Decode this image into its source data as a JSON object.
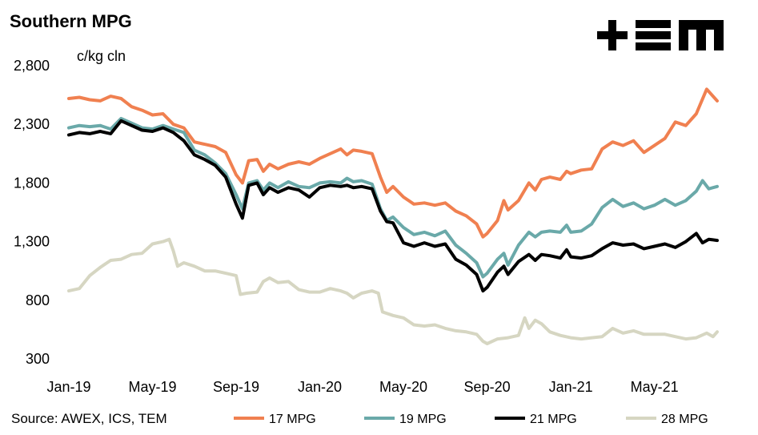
{
  "header": {
    "title": "Southern MPG",
    "unit": "c/kg cln"
  },
  "source": "Source: AWEX, ICS, TEM",
  "logo": {
    "icon": "tem-logo-icon",
    "text": "TEM"
  },
  "chart_data": {
    "type": "line",
    "title": "Southern MPG",
    "ylabel": "c/kg cln",
    "ylim": [
      300,
      2800
    ],
    "yticks": [
      "300",
      "800",
      "1,300",
      "1,800",
      "2,300",
      "2,800"
    ],
    "ytick_values": [
      300,
      800,
      1300,
      1800,
      2300,
      2800
    ],
    "xlim": [
      0,
      31
    ],
    "xticks": [
      "Jan-19",
      "May-19",
      "Sep-19",
      "Jan-20",
      "May-20",
      "Sep-20",
      "Jan-21",
      "May-21"
    ],
    "xtick_values": [
      0,
      4,
      8,
      12,
      16,
      20,
      24,
      28
    ],
    "legend_position": "bottom",
    "series": [
      {
        "name": "17 MPG",
        "color": "#f08050",
        "points": [
          [
            0,
            2520
          ],
          [
            0.5,
            2530
          ],
          [
            1,
            2510
          ],
          [
            1.5,
            2500
          ],
          [
            2,
            2540
          ],
          [
            2.5,
            2520
          ],
          [
            3,
            2450
          ],
          [
            3.5,
            2420
          ],
          [
            4,
            2380
          ],
          [
            4.5,
            2390
          ],
          [
            5,
            2300
          ],
          [
            5.5,
            2270
          ],
          [
            6,
            2150
          ],
          [
            6.5,
            2130
          ],
          [
            7,
            2110
          ],
          [
            7.5,
            2060
          ],
          [
            8,
            1870
          ],
          [
            8.3,
            1800
          ],
          [
            8.6,
            1990
          ],
          [
            9,
            2000
          ],
          [
            9.3,
            1900
          ],
          [
            9.6,
            1960
          ],
          [
            10,
            1920
          ],
          [
            10.5,
            1960
          ],
          [
            11,
            1980
          ],
          [
            11.5,
            1960
          ],
          [
            12,
            2010
          ],
          [
            12.5,
            2050
          ],
          [
            13,
            2090
          ],
          [
            13.3,
            2040
          ],
          [
            13.6,
            2080
          ],
          [
            14,
            2070
          ],
          [
            14.5,
            2050
          ],
          [
            14.9,
            1850
          ],
          [
            15.2,
            1720
          ],
          [
            15.5,
            1770
          ],
          [
            16,
            1680
          ],
          [
            16.5,
            1620
          ],
          [
            17,
            1630
          ],
          [
            17.5,
            1610
          ],
          [
            18,
            1630
          ],
          [
            18.5,
            1560
          ],
          [
            19,
            1520
          ],
          [
            19.5,
            1450
          ],
          [
            19.8,
            1340
          ],
          [
            20,
            1370
          ],
          [
            20.5,
            1480
          ],
          [
            20.8,
            1650
          ],
          [
            21,
            1570
          ],
          [
            21.5,
            1650
          ],
          [
            22,
            1800
          ],
          [
            22.3,
            1740
          ],
          [
            22.6,
            1830
          ],
          [
            23,
            1850
          ],
          [
            23.5,
            1830
          ],
          [
            23.8,
            1900
          ],
          [
            24,
            1880
          ],
          [
            24.5,
            1910
          ],
          [
            25,
            1920
          ],
          [
            25.5,
            2090
          ],
          [
            26,
            2150
          ],
          [
            26.5,
            2120
          ],
          [
            27,
            2160
          ],
          [
            27.5,
            2060
          ],
          [
            28,
            2120
          ],
          [
            28.5,
            2180
          ],
          [
            29,
            2320
          ],
          [
            29.5,
            2290
          ],
          [
            30,
            2390
          ],
          [
            30.5,
            2600
          ],
          [
            31,
            2500
          ]
        ]
      },
      {
        "name": "19 MPG",
        "color": "#6aa9a9",
        "points": [
          [
            0,
            2270
          ],
          [
            0.5,
            2290
          ],
          [
            1,
            2280
          ],
          [
            1.5,
            2290
          ],
          [
            2,
            2260
          ],
          [
            2.5,
            2350
          ],
          [
            3,
            2310
          ],
          [
            3.5,
            2270
          ],
          [
            4,
            2260
          ],
          [
            4.5,
            2290
          ],
          [
            5,
            2260
          ],
          [
            5.5,
            2230
          ],
          [
            6,
            2080
          ],
          [
            6.5,
            2040
          ],
          [
            7,
            1970
          ],
          [
            7.5,
            1880
          ],
          [
            8,
            1700
          ],
          [
            8.3,
            1580
          ],
          [
            8.6,
            1800
          ],
          [
            9,
            1820
          ],
          [
            9.3,
            1740
          ],
          [
            9.6,
            1800
          ],
          [
            10,
            1760
          ],
          [
            10.5,
            1810
          ],
          [
            11,
            1770
          ],
          [
            11.5,
            1760
          ],
          [
            12,
            1800
          ],
          [
            12.5,
            1810
          ],
          [
            13,
            1800
          ],
          [
            13.3,
            1840
          ],
          [
            13.6,
            1810
          ],
          [
            14,
            1820
          ],
          [
            14.5,
            1790
          ],
          [
            14.9,
            1580
          ],
          [
            15.2,
            1480
          ],
          [
            15.5,
            1510
          ],
          [
            16,
            1420
          ],
          [
            16.5,
            1360
          ],
          [
            17,
            1380
          ],
          [
            17.5,
            1350
          ],
          [
            18,
            1390
          ],
          [
            18.5,
            1270
          ],
          [
            19,
            1200
          ],
          [
            19.5,
            1120
          ],
          [
            19.8,
            1000
          ],
          [
            20,
            1030
          ],
          [
            20.5,
            1150
          ],
          [
            20.8,
            1200
          ],
          [
            21,
            1100
          ],
          [
            21.5,
            1270
          ],
          [
            22,
            1380
          ],
          [
            22.3,
            1340
          ],
          [
            22.6,
            1380
          ],
          [
            23,
            1390
          ],
          [
            23.5,
            1380
          ],
          [
            23.8,
            1440
          ],
          [
            24,
            1380
          ],
          [
            24.5,
            1390
          ],
          [
            25,
            1450
          ],
          [
            25.5,
            1590
          ],
          [
            26,
            1660
          ],
          [
            26.5,
            1600
          ],
          [
            27,
            1630
          ],
          [
            27.5,
            1580
          ],
          [
            28,
            1610
          ],
          [
            28.5,
            1660
          ],
          [
            29,
            1610
          ],
          [
            29.5,
            1650
          ],
          [
            30,
            1730
          ],
          [
            30.3,
            1820
          ],
          [
            30.6,
            1750
          ],
          [
            31,
            1770
          ]
        ]
      },
      {
        "name": "21 MPG",
        "color": "#000000",
        "points": [
          [
            0,
            2210
          ],
          [
            0.5,
            2230
          ],
          [
            1,
            2220
          ],
          [
            1.5,
            2240
          ],
          [
            2,
            2220
          ],
          [
            2.5,
            2330
          ],
          [
            3,
            2290
          ],
          [
            3.5,
            2250
          ],
          [
            4,
            2240
          ],
          [
            4.5,
            2270
          ],
          [
            5,
            2230
          ],
          [
            5.5,
            2160
          ],
          [
            6,
            2040
          ],
          [
            6.5,
            2000
          ],
          [
            7,
            1950
          ],
          [
            7.5,
            1850
          ],
          [
            8,
            1620
          ],
          [
            8.3,
            1500
          ],
          [
            8.6,
            1780
          ],
          [
            9,
            1800
          ],
          [
            9.3,
            1700
          ],
          [
            9.6,
            1760
          ],
          [
            10,
            1720
          ],
          [
            10.5,
            1760
          ],
          [
            11,
            1740
          ],
          [
            11.5,
            1680
          ],
          [
            12,
            1760
          ],
          [
            12.5,
            1780
          ],
          [
            13,
            1770
          ],
          [
            13.3,
            1780
          ],
          [
            13.6,
            1760
          ],
          [
            14,
            1770
          ],
          [
            14.5,
            1750
          ],
          [
            14.9,
            1560
          ],
          [
            15.2,
            1470
          ],
          [
            15.5,
            1460
          ],
          [
            16,
            1290
          ],
          [
            16.5,
            1260
          ],
          [
            17,
            1290
          ],
          [
            17.5,
            1260
          ],
          [
            18,
            1280
          ],
          [
            18.5,
            1150
          ],
          [
            19,
            1100
          ],
          [
            19.5,
            1020
          ],
          [
            19.8,
            880
          ],
          [
            20,
            910
          ],
          [
            20.5,
            1040
          ],
          [
            20.8,
            1090
          ],
          [
            21,
            1020
          ],
          [
            21.5,
            1130
          ],
          [
            22,
            1190
          ],
          [
            22.3,
            1140
          ],
          [
            22.6,
            1190
          ],
          [
            23,
            1180
          ],
          [
            23.5,
            1160
          ],
          [
            23.8,
            1230
          ],
          [
            24,
            1170
          ],
          [
            24.5,
            1160
          ],
          [
            25,
            1180
          ],
          [
            25.5,
            1240
          ],
          [
            26,
            1290
          ],
          [
            26.5,
            1270
          ],
          [
            27,
            1280
          ],
          [
            27.5,
            1240
          ],
          [
            28,
            1260
          ],
          [
            28.5,
            1280
          ],
          [
            29,
            1250
          ],
          [
            29.5,
            1300
          ],
          [
            30,
            1370
          ],
          [
            30.3,
            1290
          ],
          [
            30.6,
            1320
          ],
          [
            31,
            1310
          ]
        ]
      },
      {
        "name": "28 MPG",
        "color": "#d6d6c2",
        "points": [
          [
            0,
            880
          ],
          [
            0.5,
            900
          ],
          [
            1,
            1010
          ],
          [
            1.5,
            1080
          ],
          [
            2,
            1140
          ],
          [
            2.5,
            1150
          ],
          [
            3,
            1190
          ],
          [
            3.5,
            1200
          ],
          [
            4,
            1280
          ],
          [
            4.5,
            1300
          ],
          [
            4.8,
            1320
          ],
          [
            5,
            1220
          ],
          [
            5.2,
            1090
          ],
          [
            5.5,
            1120
          ],
          [
            6,
            1090
          ],
          [
            6.5,
            1050
          ],
          [
            7,
            1050
          ],
          [
            7.5,
            1030
          ],
          [
            8,
            1010
          ],
          [
            8.2,
            850
          ],
          [
            8.5,
            860
          ],
          [
            9,
            870
          ],
          [
            9.3,
            960
          ],
          [
            9.6,
            990
          ],
          [
            10,
            950
          ],
          [
            10.5,
            960
          ],
          [
            11,
            890
          ],
          [
            11.5,
            870
          ],
          [
            12,
            870
          ],
          [
            12.5,
            900
          ],
          [
            13,
            880
          ],
          [
            13.3,
            860
          ],
          [
            13.6,
            820
          ],
          [
            14,
            860
          ],
          [
            14.5,
            880
          ],
          [
            14.8,
            860
          ],
          [
            15,
            700
          ],
          [
            15.5,
            670
          ],
          [
            16,
            650
          ],
          [
            16.5,
            590
          ],
          [
            17,
            580
          ],
          [
            17.5,
            590
          ],
          [
            18,
            560
          ],
          [
            18.5,
            540
          ],
          [
            19,
            530
          ],
          [
            19.5,
            510
          ],
          [
            19.8,
            450
          ],
          [
            20,
            430
          ],
          [
            20.5,
            470
          ],
          [
            21,
            480
          ],
          [
            21.5,
            500
          ],
          [
            21.8,
            650
          ],
          [
            22,
            560
          ],
          [
            22.3,
            630
          ],
          [
            22.6,
            600
          ],
          [
            23,
            530
          ],
          [
            23.5,
            500
          ],
          [
            24,
            480
          ],
          [
            24.5,
            470
          ],
          [
            25,
            480
          ],
          [
            25.5,
            490
          ],
          [
            26,
            560
          ],
          [
            26.5,
            520
          ],
          [
            27,
            540
          ],
          [
            27.5,
            510
          ],
          [
            28,
            510
          ],
          [
            28.5,
            510
          ],
          [
            29,
            490
          ],
          [
            29.5,
            470
          ],
          [
            30,
            480
          ],
          [
            30.5,
            520
          ],
          [
            30.8,
            490
          ],
          [
            31,
            530
          ]
        ]
      }
    ]
  }
}
